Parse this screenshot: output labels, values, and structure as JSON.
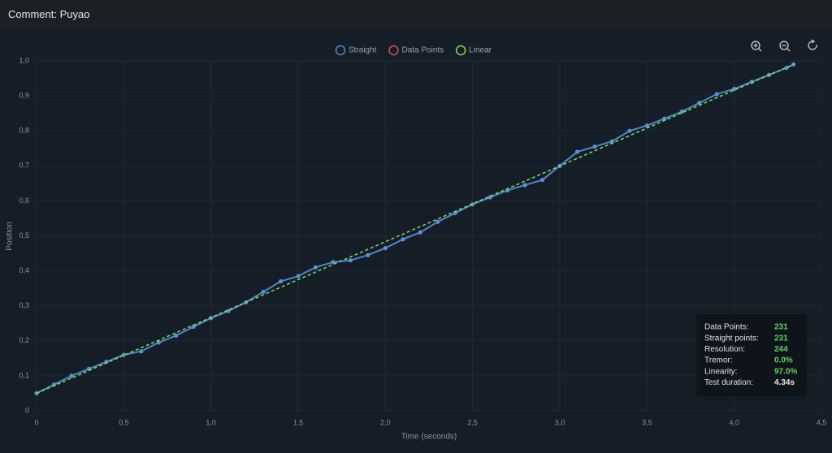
{
  "header": {
    "comment": "Comment: Puyao"
  },
  "chart_data": {
    "type": "line",
    "x_label": "Time (seconds)",
    "y_label": "Position",
    "xlim": [
      0,
      4.5
    ],
    "ylim": [
      0,
      1.0
    ],
    "xticks": [
      0,
      {
        "value": 0.5,
        "label": "0,5"
      },
      {
        "value": 1.0,
        "label": "1,0"
      },
      {
        "value": 1.5,
        "label": "1,5"
      },
      {
        "value": 2.0,
        "label": "2,0"
      },
      {
        "value": 2.5,
        "label": "2,5"
      },
      {
        "value": 3.0,
        "label": "3,0"
      },
      {
        "value": 3.5,
        "label": "3,5"
      },
      {
        "value": 4.0,
        "label": "4,0"
      },
      {
        "value": 4.5,
        "label": "4,5"
      }
    ],
    "yticks": [
      0,
      {
        "value": 0.1,
        "label": "0,1"
      },
      {
        "value": 0.2,
        "label": "0,2"
      },
      {
        "value": 0.3,
        "label": "0,3"
      },
      {
        "value": 0.4,
        "label": "0,4"
      },
      {
        "value": 0.5,
        "label": "0,5"
      },
      {
        "value": 0.6,
        "label": "0,6"
      },
      {
        "value": 0.7,
        "label": "0,7"
      },
      {
        "value": 0.8,
        "label": "0,8"
      },
      {
        "value": 0.9,
        "label": "0,9"
      },
      {
        "value": 1.0,
        "label": "1,0"
      }
    ],
    "grid": true,
    "series": [
      {
        "name": "Straight",
        "color": "#4f86c9",
        "x": [
          0,
          0.1,
          0.2,
          0.3,
          0.4,
          0.5,
          0.6,
          0.7,
          0.8,
          0.9,
          1.0,
          1.1,
          1.2,
          1.3,
          1.4,
          1.5,
          1.6,
          1.7,
          1.8,
          1.9,
          2.0,
          2.1,
          2.2,
          2.3,
          2.4,
          2.5,
          2.6,
          2.7,
          2.8,
          2.9,
          3.0,
          3.1,
          3.2,
          3.3,
          3.4,
          3.5,
          3.6,
          3.7,
          3.8,
          3.9,
          4.0,
          4.1,
          4.2,
          4.3,
          4.34
        ],
        "values": [
          0.05,
          0.075,
          0.1,
          0.12,
          0.14,
          0.16,
          0.17,
          0.195,
          0.215,
          0.24,
          0.265,
          0.285,
          0.31,
          0.34,
          0.37,
          0.385,
          0.41,
          0.425,
          0.43,
          0.445,
          0.465,
          0.49,
          0.51,
          0.54,
          0.565,
          0.59,
          0.61,
          0.63,
          0.645,
          0.66,
          0.7,
          0.74,
          0.755,
          0.77,
          0.8,
          0.815,
          0.835,
          0.855,
          0.88,
          0.905,
          0.92,
          0.94,
          0.96,
          0.98,
          0.99
        ],
        "markers": true
      },
      {
        "name": "Data Points",
        "color": "#d05555"
      },
      {
        "name": "Linear",
        "color": "#7ee05c",
        "x": [
          0,
          4.34
        ],
        "values": [
          0.05,
          0.99
        ],
        "dashed": true
      }
    ]
  },
  "stats": {
    "rows": [
      [
        "Data Points:",
        "231"
      ],
      [
        "Straight points:",
        "231"
      ],
      [
        "Resolution:",
        "244"
      ],
      [
        "Tremor:",
        "0.0%"
      ],
      [
        "Linearity:",
        "97.0%"
      ],
      [
        "Test duration:",
        "4.34s"
      ]
    ]
  }
}
